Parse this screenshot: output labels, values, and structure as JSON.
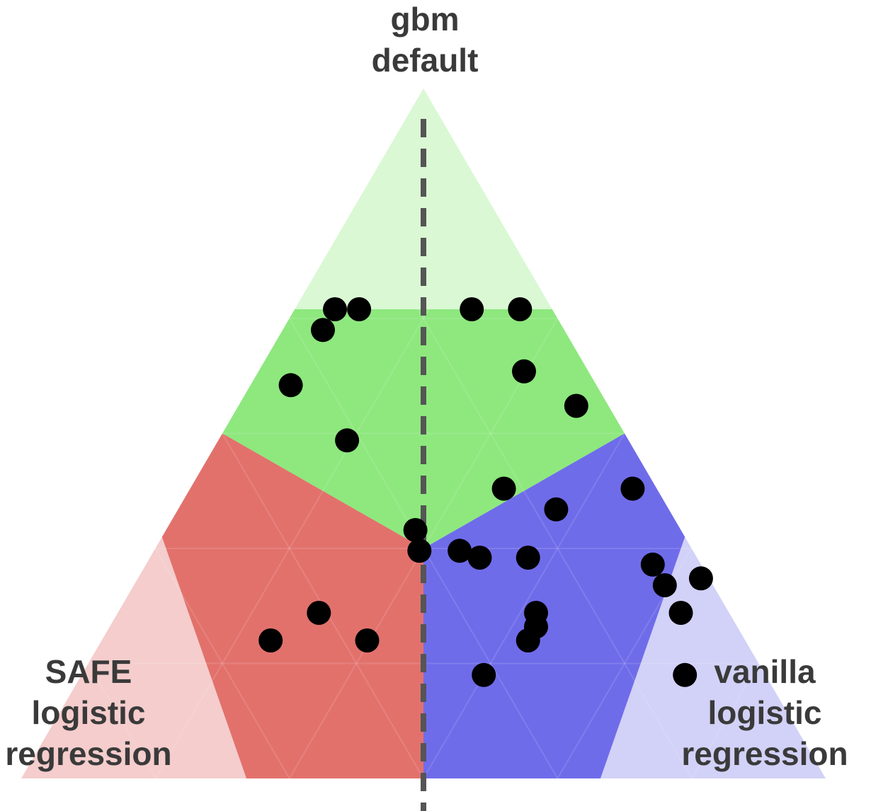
{
  "chart_data": {
    "type": "scatter",
    "subtype": "ternary",
    "vertices": {
      "top": [
        "gbm",
        "default"
      ],
      "left": [
        "SAFE",
        "logistic",
        "regression"
      ],
      "right": [
        "vanilla",
        "logistic",
        "regression"
      ]
    },
    "regions": [
      {
        "winner": "gbm default",
        "color": "#8ee87e",
        "light_color": "#d9f8d3"
      },
      {
        "winner": "SAFE logistic regression",
        "color": "#e2716c",
        "light_color": "#f4cdcc"
      },
      {
        "winner": "vanilla logistic regression",
        "color": "#6f6cea",
        "light_color": "#d2d1f7"
      }
    ],
    "core_threshold": 0.5,
    "divider": "dashed vertical line from top vertex to base midpoint",
    "points": [
      {
        "gbm_default": 0.68,
        "safe_logistic": 0.27,
        "vanilla_logistic": 0.05
      },
      {
        "gbm_default": 0.68,
        "safe_logistic": 0.24,
        "vanilla_logistic": 0.08
      },
      {
        "gbm_default": 0.65,
        "safe_logistic": 0.3,
        "vanilla_logistic": 0.05
      },
      {
        "gbm_default": 0.57,
        "safe_logistic": 0.38,
        "vanilla_logistic": 0.05
      },
      {
        "gbm_default": 0.49,
        "safe_logistic": 0.35,
        "vanilla_logistic": 0.16
      },
      {
        "gbm_default": 0.68,
        "safe_logistic": 0.1,
        "vanilla_logistic": 0.22
      },
      {
        "gbm_default": 0.68,
        "safe_logistic": 0.04,
        "vanilla_logistic": 0.28
      },
      {
        "gbm_default": 0.59,
        "safe_logistic": 0.08,
        "vanilla_logistic": 0.33
      },
      {
        "gbm_default": 0.54,
        "safe_logistic": 0.04,
        "vanilla_logistic": 0.42
      },
      {
        "gbm_default": 0.42,
        "safe_logistic": 0.19,
        "vanilla_logistic": 0.39
      },
      {
        "gbm_default": 0.39,
        "safe_logistic": 0.14,
        "vanilla_logistic": 0.47
      },
      {
        "gbm_default": 0.42,
        "safe_logistic": 0.03,
        "vanilla_logistic": 0.55
      },
      {
        "gbm_default": 0.36,
        "safe_logistic": 0.33,
        "vanilla_logistic": 0.31
      },
      {
        "gbm_default": 0.33,
        "safe_logistic": 0.29,
        "vanilla_logistic": 0.38
      },
      {
        "gbm_default": 0.32,
        "safe_logistic": 0.21,
        "vanilla_logistic": 0.47
      },
      {
        "gbm_default": 0.32,
        "safe_logistic": 0.27,
        "vanilla_logistic": 0.41
      },
      {
        "gbm_default": 0.31,
        "safe_logistic": 0.06,
        "vanilla_logistic": 0.63
      },
      {
        "gbm_default": 0.29,
        "safe_logistic": 0.01,
        "vanilla_logistic": 0.7
      },
      {
        "gbm_default": 0.33,
        "safe_logistic": 0.34,
        "vanilla_logistic": 0.33
      },
      {
        "gbm_default": 0.24,
        "safe_logistic": 0.06,
        "vanilla_logistic": 0.7
      },
      {
        "gbm_default": 0.24,
        "safe_logistic": 0.24,
        "vanilla_logistic": 0.52
      },
      {
        "gbm_default": 0.22,
        "safe_logistic": 0.25,
        "vanilla_logistic": 0.53
      },
      {
        "gbm_default": 0.2,
        "safe_logistic": 0.27,
        "vanilla_logistic": 0.53
      },
      {
        "gbm_default": 0.15,
        "safe_logistic": 0.35,
        "vanilla_logistic": 0.5
      },
      {
        "gbm_default": 0.15,
        "safe_logistic": 0.1,
        "vanilla_logistic": 0.75
      },
      {
        "gbm_default": 0.24,
        "safe_logistic": 0.51,
        "vanilla_logistic": 0.25
      },
      {
        "gbm_default": 0.2,
        "safe_logistic": 0.59,
        "vanilla_logistic": 0.21
      },
      {
        "gbm_default": 0.2,
        "safe_logistic": 0.47,
        "vanilla_logistic": 0.33
      },
      {
        "gbm_default": 0.28,
        "safe_logistic": 0.06,
        "vanilla_logistic": 0.66
      }
    ]
  }
}
